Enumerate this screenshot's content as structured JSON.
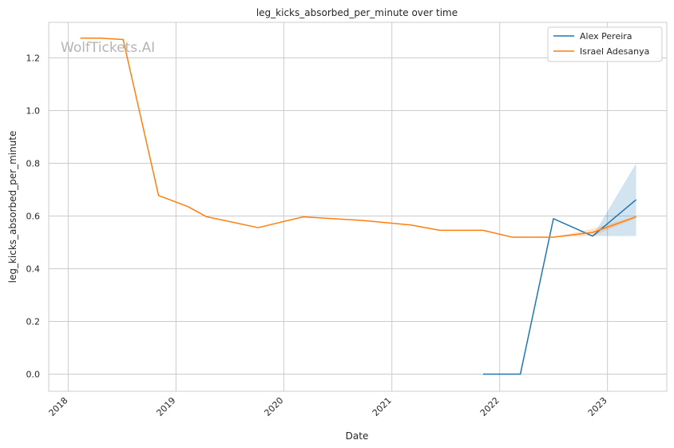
{
  "chart_data": {
    "type": "line",
    "title": "leg_kicks_absorbed_per_minute over time",
    "xlabel": "Date",
    "ylabel": "leg_kicks_absorbed_per_minute",
    "watermark": "WolfTickets.AI",
    "x_ticks": [
      "2018",
      "2019",
      "2020",
      "2021",
      "2022",
      "2023"
    ],
    "y_ticks": [
      "0.0",
      "0.2",
      "0.4",
      "0.6",
      "0.8",
      "1.0",
      "1.2"
    ],
    "xlim": [
      "2017-10-27",
      "2023-07-21"
    ],
    "ylim": [
      -0.065,
      1.335
    ],
    "grid": true,
    "legend_position": "top-right",
    "series": [
      {
        "name": "Alex Pereira",
        "color": "#1f77b4",
        "points": [
          {
            "x": "2021-11-06",
            "y": 0.0
          },
          {
            "x": "2022-03-12",
            "y": 0.0
          },
          {
            "x": "2022-07-02",
            "y": 0.59
          },
          {
            "x": "2022-11-12",
            "y": 0.524
          },
          {
            "x": "2023-04-08",
            "y": 0.662
          }
        ],
        "band": [
          {
            "x": "2022-11-12",
            "lo": 0.524,
            "hi": 0.524
          },
          {
            "x": "2023-04-08",
            "lo": 0.524,
            "hi": 0.8
          }
        ]
      },
      {
        "name": "Israel Adesanya",
        "color": "#ff7f0e",
        "points": [
          {
            "x": "2018-02-11",
            "y": 1.275
          },
          {
            "x": "2018-04-21",
            "y": 1.275
          },
          {
            "x": "2018-07-06",
            "y": 1.27
          },
          {
            "x": "2018-11-03",
            "y": 0.678
          },
          {
            "x": "2019-02-10",
            "y": 0.636
          },
          {
            "x": "2019-04-13",
            "y": 0.598
          },
          {
            "x": "2019-10-06",
            "y": 0.556
          },
          {
            "x": "2020-03-07",
            "y": 0.597
          },
          {
            "x": "2020-09-26",
            "y": 0.583
          },
          {
            "x": "2021-03-06",
            "y": 0.566
          },
          {
            "x": "2021-06-12",
            "y": 0.546
          },
          {
            "x": "2021-11-06",
            "y": 0.546
          },
          {
            "x": "2022-02-12",
            "y": 0.52
          },
          {
            "x": "2022-07-02",
            "y": 0.52
          },
          {
            "x": "2022-11-12",
            "y": 0.538
          },
          {
            "x": "2023-04-08",
            "y": 0.597
          }
        ],
        "band": [
          {
            "x": "2022-07-02",
            "lo": 0.52,
            "hi": 0.52
          },
          {
            "x": "2022-11-12",
            "lo": 0.524,
            "hi": 0.552
          },
          {
            "x": "2023-04-08",
            "lo": 0.592,
            "hi": 0.601
          }
        ]
      }
    ]
  }
}
